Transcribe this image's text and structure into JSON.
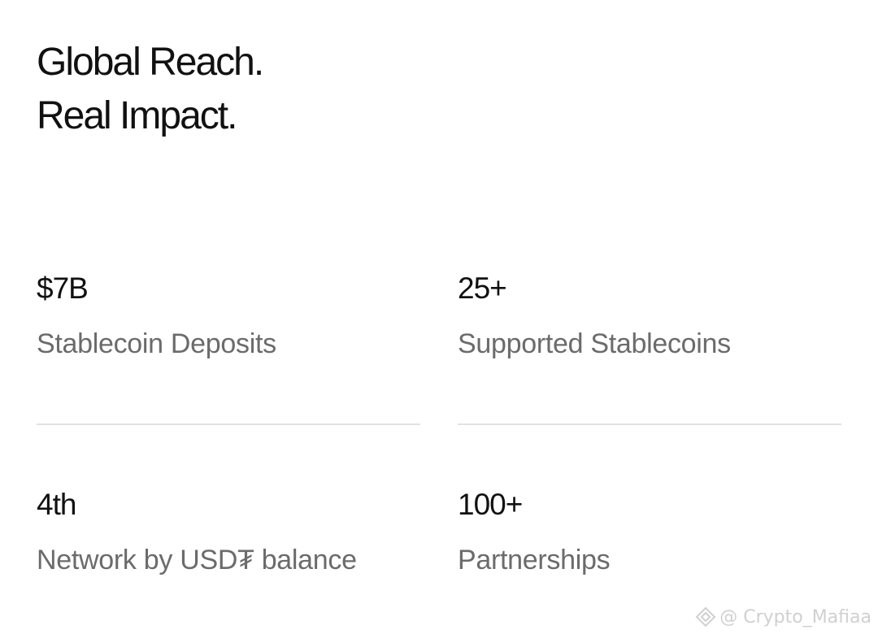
{
  "title_lines": [
    "Global Reach.",
    "Real Impact."
  ],
  "stats": [
    {
      "value": "$7B",
      "label": "Stablecoin Deposits"
    },
    {
      "value": "25+",
      "label": "Supported Stablecoins"
    },
    {
      "value": "4th",
      "label": "Network by USD₮ balance"
    },
    {
      "value": "100+",
      "label": "Partnerships"
    }
  ],
  "watermark": {
    "icon": "binance-logo-icon",
    "text": "@ Crypto_Mafiaa"
  }
}
